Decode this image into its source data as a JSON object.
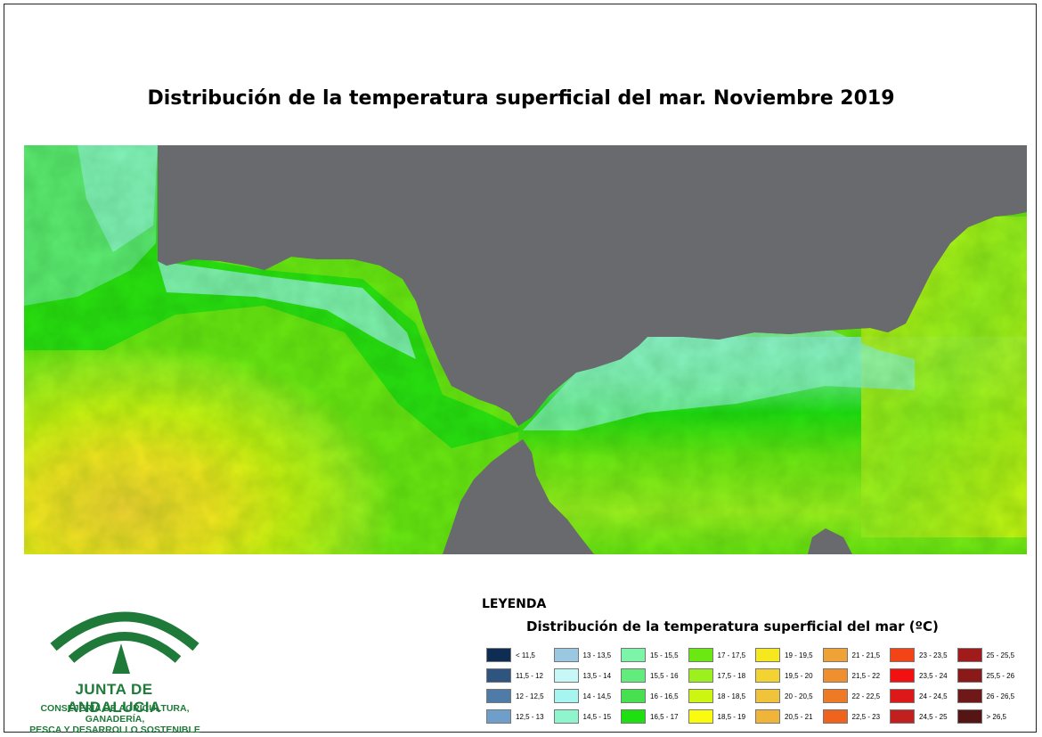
{
  "title": "Distribución de la temperatura superficial del mar. Noviembre 2019",
  "legend": {
    "heading": "LEYENDA",
    "subtitle": "Distribución de la temperatura superficial del mar (ºC)",
    "classes": [
      {
        "label": "< 11,5",
        "color": "#0d2e52"
      },
      {
        "label": "11,5 - 12",
        "color": "#2e557f"
      },
      {
        "label": "12 - 12,5",
        "color": "#4f7ba8"
      },
      {
        "label": "12,5 - 13",
        "color": "#6e9fcb"
      },
      {
        "label": "13 - 13,5",
        "color": "#9ac8e0"
      },
      {
        "label": "13,5 - 14",
        "color": "#c8f7f7"
      },
      {
        "label": "14 - 14,5",
        "color": "#a6f5f0"
      },
      {
        "label": "14,5 - 15",
        "color": "#8ff5cc"
      },
      {
        "label": "15 - 15,5",
        "color": "#7df5a8"
      },
      {
        "label": "15,5 - 16",
        "color": "#63ec7e"
      },
      {
        "label": "16 - 16,5",
        "color": "#46e050"
      },
      {
        "label": "16,5 - 17",
        "color": "#1ee010"
      },
      {
        "label": "17 - 17,5",
        "color": "#6be812"
      },
      {
        "label": "17,5 - 18",
        "color": "#9cf01e"
      },
      {
        "label": "18 - 18,5",
        "color": "#ccf511"
      },
      {
        "label": "18,5 - 19",
        "color": "#fbfb10"
      },
      {
        "label": "19 - 19,5",
        "color": "#f5e81f"
      },
      {
        "label": "19,5 - 20",
        "color": "#f3d332"
      },
      {
        "label": "20 - 20,5",
        "color": "#f0c33a"
      },
      {
        "label": "20,5 - 21",
        "color": "#efb438"
      },
      {
        "label": "21 - 21,5",
        "color": "#efa235"
      },
      {
        "label": "21,5 - 22",
        "color": "#ef8f2e"
      },
      {
        "label": "22 - 22,5",
        "color": "#ef7a26"
      },
      {
        "label": "22,5 - 23",
        "color": "#ef631d"
      },
      {
        "label": "23 - 23,5",
        "color": "#f24417"
      },
      {
        "label": "23,5 - 24",
        "color": "#f21010"
      },
      {
        "label": "24 - 24,5",
        "color": "#dd1818"
      },
      {
        "label": "24,5 - 25",
        "color": "#c21f1f"
      },
      {
        "label": "25 - 25,5",
        "color": "#a01c1c"
      },
      {
        "label": "25,5 - 26",
        "color": "#8a1a1a"
      },
      {
        "label": "26 - 26,5",
        "color": "#701818"
      },
      {
        "label": "> 26,5",
        "color": "#551515"
      }
    ]
  },
  "map": {
    "land_color": "#696a6e",
    "sea_colors": [
      "#fbe81f",
      "#ccf511",
      "#9cf01e",
      "#6be812",
      "#1ee010",
      "#63ec7e",
      "#8ff5cc",
      "#c8f7f7"
    ]
  },
  "logo": {
    "name": "JUNTA DE ANDALUCIA",
    "department_line1": "CONSEJERÍA DE AGRICULTURA, GANADERÍA,",
    "department_line2": "PESCA Y DESARROLLO SOSTENIBLE",
    "color": "#1f7a3a"
  }
}
